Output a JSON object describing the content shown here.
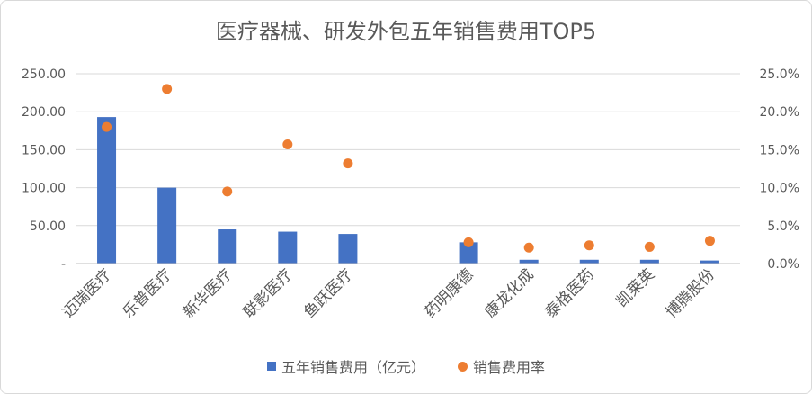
{
  "chart_data": {
    "type": "bar",
    "title": "医疗器械、研发外包五年销售费用TOP5",
    "categories": [
      "迈瑞医疗",
      "乐普医疗",
      "新华医疗",
      "联影医疗",
      "鱼跃医疗",
      "",
      "药明康德",
      "康龙化成",
      "泰格医药",
      "凯莱英",
      "博腾股份"
    ],
    "series": [
      {
        "name": "五年销售费用（亿元）",
        "type": "bar",
        "axis": "left",
        "color": "#4472c4",
        "values": [
          193,
          100,
          45,
          42,
          39,
          null,
          28,
          5,
          5,
          5,
          4
        ]
      },
      {
        "name": "销售费用率",
        "type": "scatter",
        "axis": "right",
        "color": "#ed7d31",
        "values": [
          0.18,
          0.23,
          0.095,
          0.157,
          0.132,
          null,
          0.028,
          0.021,
          0.024,
          0.022,
          0.03
        ]
      }
    ],
    "ylim_left": [
      0,
      250
    ],
    "yticks_left": [
      "-",
      "50.00",
      "100.00",
      "150.00",
      "200.00",
      "250.00"
    ],
    "ylim_right": [
      0,
      0.25
    ],
    "yticks_right": [
      "0.0%",
      "5.0%",
      "10.0%",
      "15.0%",
      "20.0%",
      "25.0%"
    ],
    "grid": true,
    "legend_position": "bottom"
  }
}
